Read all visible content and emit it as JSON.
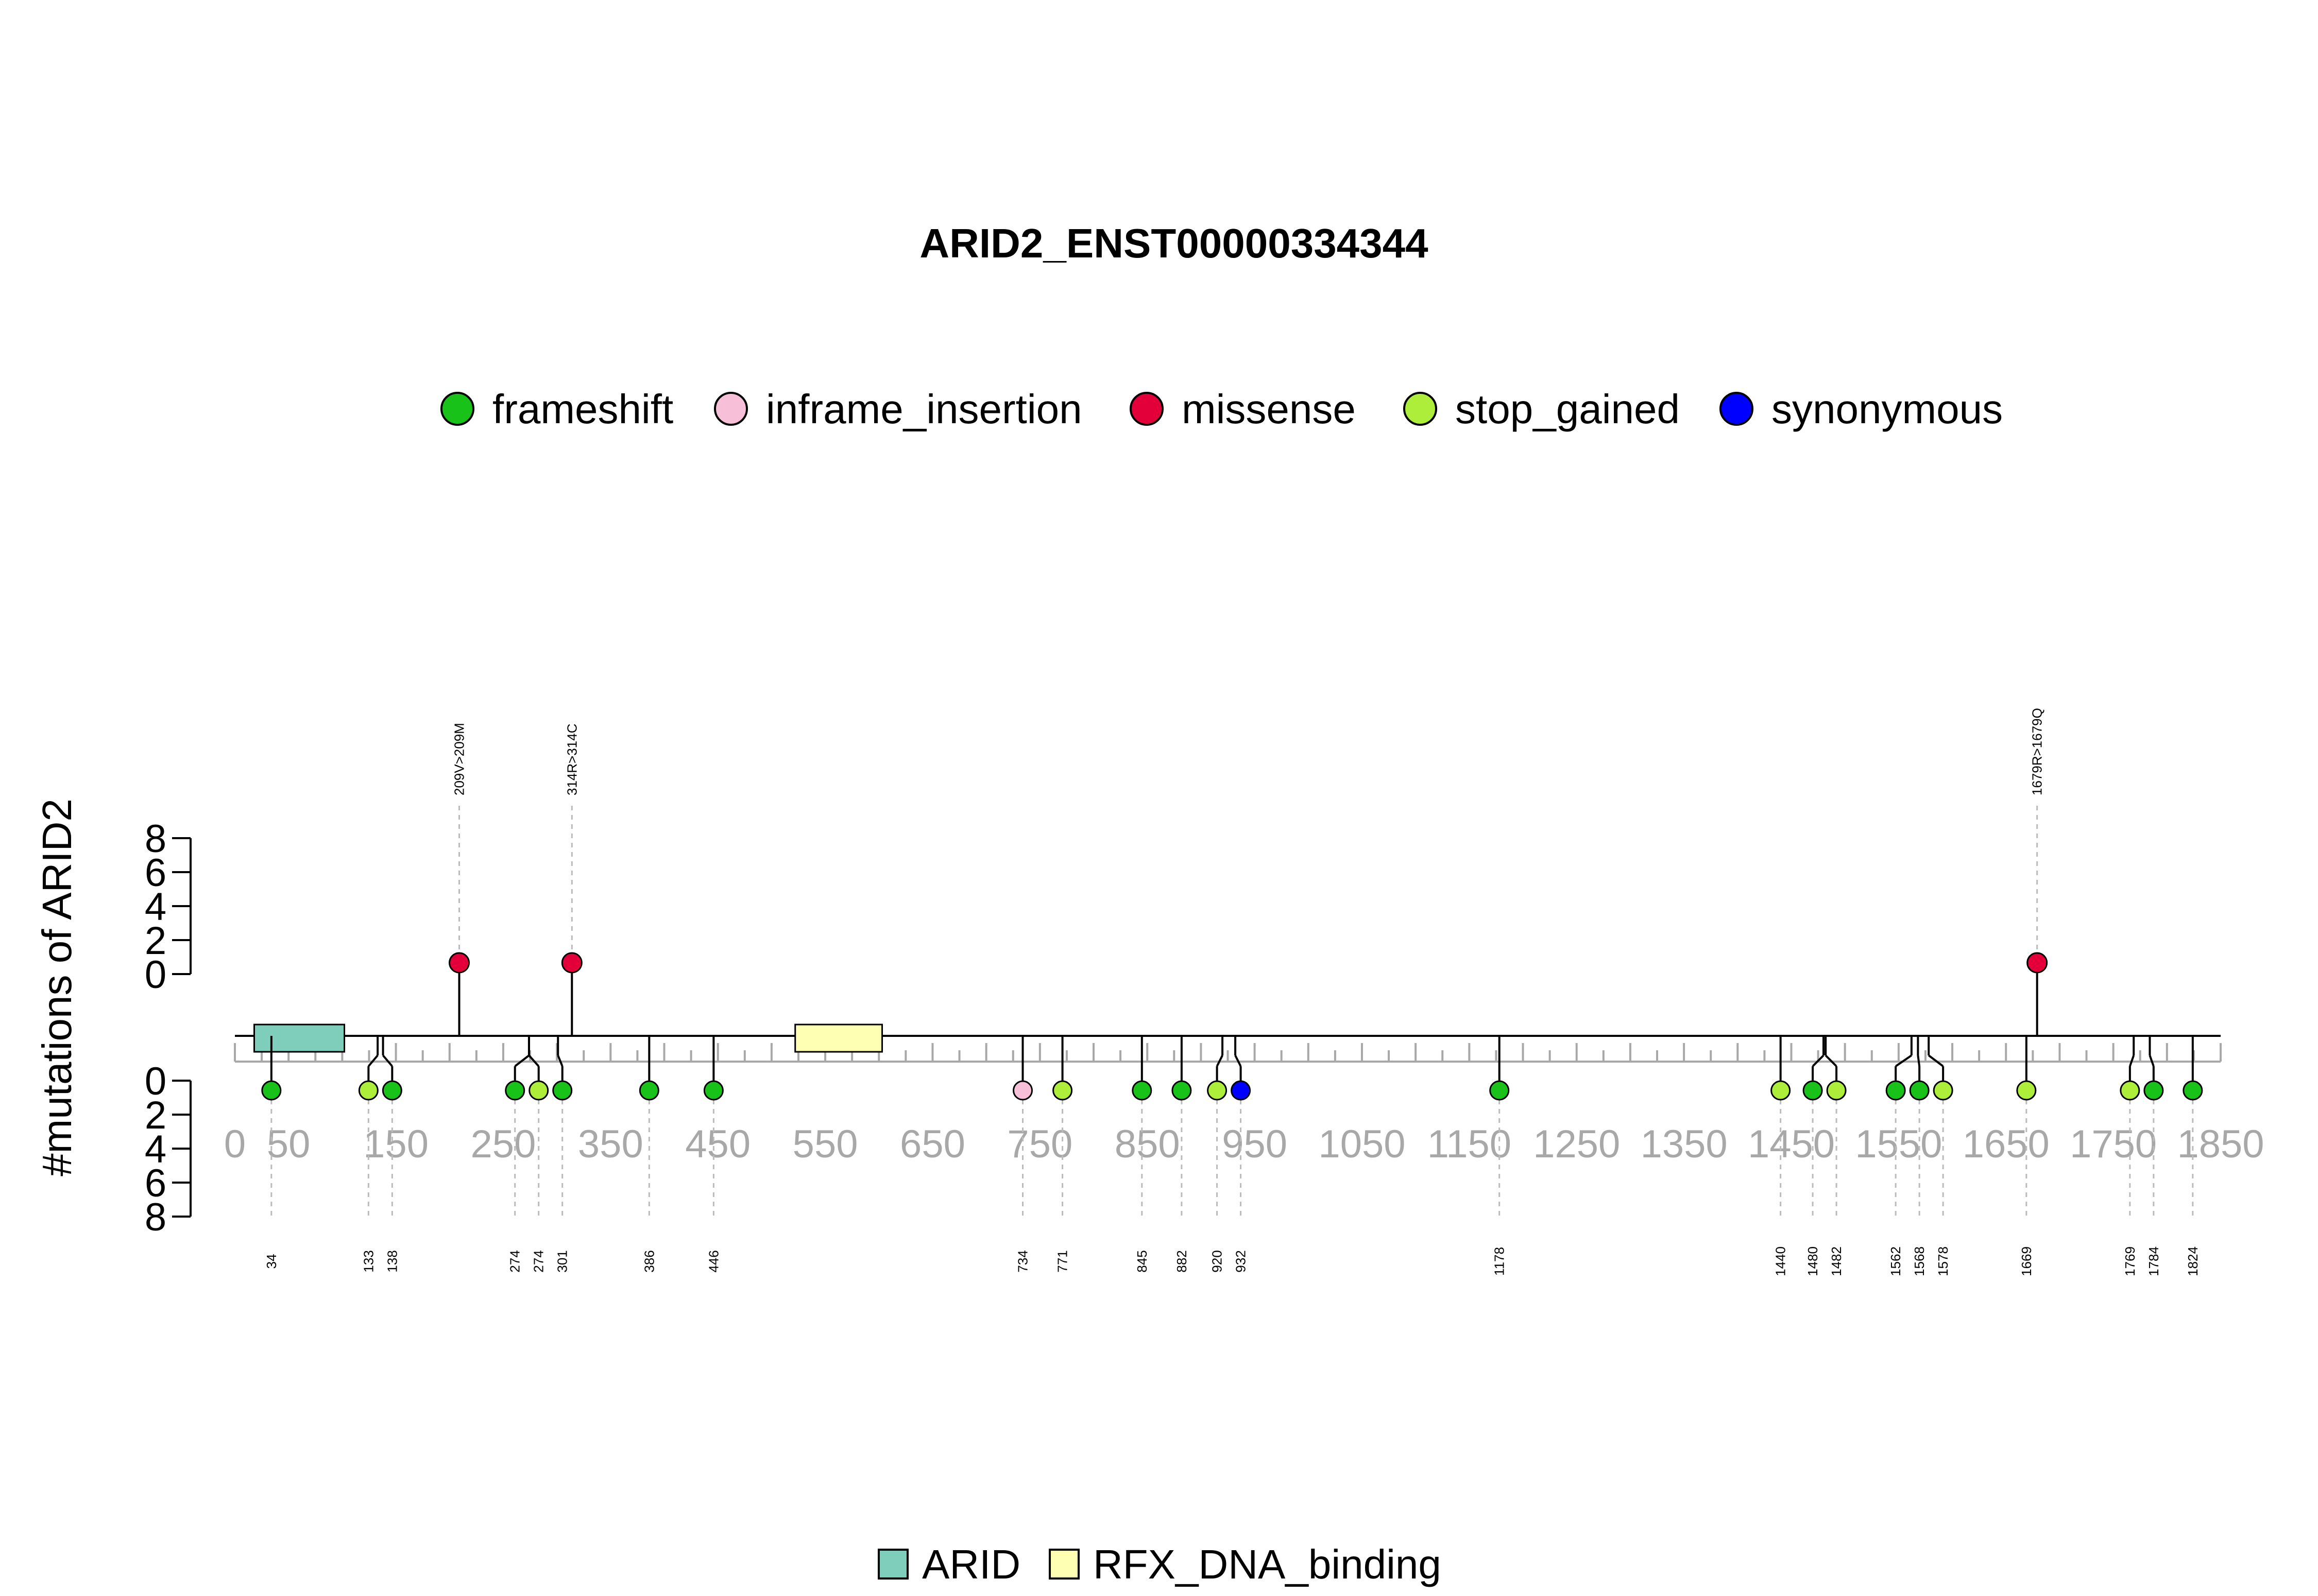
{
  "chart_data": {
    "type": "lollipop",
    "title": "ARID2_ENST00000334344",
    "ylabel": "#mutations of ARID2",
    "xlim": [
      0,
      1850
    ],
    "x_ticks": [
      0,
      50,
      150,
      250,
      350,
      450,
      550,
      650,
      750,
      850,
      950,
      1050,
      1150,
      1250,
      1350,
      1450,
      1550,
      1650,
      1750,
      1850
    ],
    "y_ticks_top": [
      "8",
      "6",
      "4",
      "2",
      "0"
    ],
    "y_ticks_bottom": [
      "0",
      "2",
      "4",
      "6",
      "8"
    ],
    "mutation_legend": [
      {
        "name": "frameshift",
        "color": "#19c219"
      },
      {
        "name": "inframe_insertion",
        "color": "#f7c0d8"
      },
      {
        "name": "missense",
        "color": "#e3003a"
      },
      {
        "name": "stop_gained",
        "color": "#acee3a"
      },
      {
        "name": "synonymous",
        "color": "#0000ff"
      }
    ],
    "domain_legend": [
      {
        "name": "ARID",
        "color": "#7fcdbb"
      },
      {
        "name": "RFX_DNA_binding",
        "color": "#ffffb3"
      }
    ],
    "domains": [
      {
        "name": "ARID",
        "start": 18,
        "end": 102
      },
      {
        "name": "RFX_DNA_binding",
        "start": 522,
        "end": 603
      }
    ],
    "top_mutations": [
      {
        "position": 209,
        "type": "missense",
        "count": 1,
        "label": "209V>209M"
      },
      {
        "position": 314,
        "type": "missense",
        "count": 1,
        "label": "314R>314C"
      },
      {
        "position": 1679,
        "type": "missense",
        "count": 1,
        "label": "1679R>1679Q"
      }
    ],
    "bottom_mutations": [
      {
        "position": 34,
        "type": "frameshift",
        "count": 1,
        "label": "34"
      },
      {
        "position": 133,
        "type": "stop_gained",
        "count": 1,
        "label": "133"
      },
      {
        "position": 138,
        "type": "frameshift",
        "count": 1,
        "label": "138"
      },
      {
        "position": 274,
        "type": "frameshift",
        "count": 1,
        "label": "274"
      },
      {
        "position": 274,
        "type": "stop_gained",
        "count": 1,
        "label": "274"
      },
      {
        "position": 301,
        "type": "frameshift",
        "count": 1,
        "label": "301"
      },
      {
        "position": 386,
        "type": "frameshift",
        "count": 1,
        "label": "386"
      },
      {
        "position": 446,
        "type": "frameshift",
        "count": 1,
        "label": "446"
      },
      {
        "position": 734,
        "type": "inframe_insertion",
        "count": 1,
        "label": "734"
      },
      {
        "position": 771,
        "type": "stop_gained",
        "count": 1,
        "label": "771"
      },
      {
        "position": 845,
        "type": "frameshift",
        "count": 1,
        "label": "845"
      },
      {
        "position": 882,
        "type": "frameshift",
        "count": 1,
        "label": "882"
      },
      {
        "position": 920,
        "type": "stop_gained",
        "count": 1,
        "label": "920"
      },
      {
        "position": 932,
        "type": "synonymous",
        "count": 1,
        "label": "932"
      },
      {
        "position": 1178,
        "type": "frameshift",
        "count": 1,
        "label": "1178"
      },
      {
        "position": 1440,
        "type": "stop_gained",
        "count": 1,
        "label": "1440"
      },
      {
        "position": 1480,
        "type": "frameshift",
        "count": 1,
        "label": "1480"
      },
      {
        "position": 1482,
        "type": "stop_gained",
        "count": 1,
        "label": "1482"
      },
      {
        "position": 1562,
        "type": "frameshift",
        "count": 1,
        "label": "1562"
      },
      {
        "position": 1568,
        "type": "frameshift",
        "count": 1,
        "label": "1568"
      },
      {
        "position": 1578,
        "type": "stop_gained",
        "count": 1,
        "label": "1578"
      },
      {
        "position": 1669,
        "type": "stop_gained",
        "count": 1,
        "label": "1669"
      },
      {
        "position": 1769,
        "type": "stop_gained",
        "count": 1,
        "label": "1769"
      },
      {
        "position": 1784,
        "type": "frameshift",
        "count": 1,
        "label": "1784"
      },
      {
        "position": 1824,
        "type": "frameshift",
        "count": 1,
        "label": "1824"
      }
    ]
  }
}
